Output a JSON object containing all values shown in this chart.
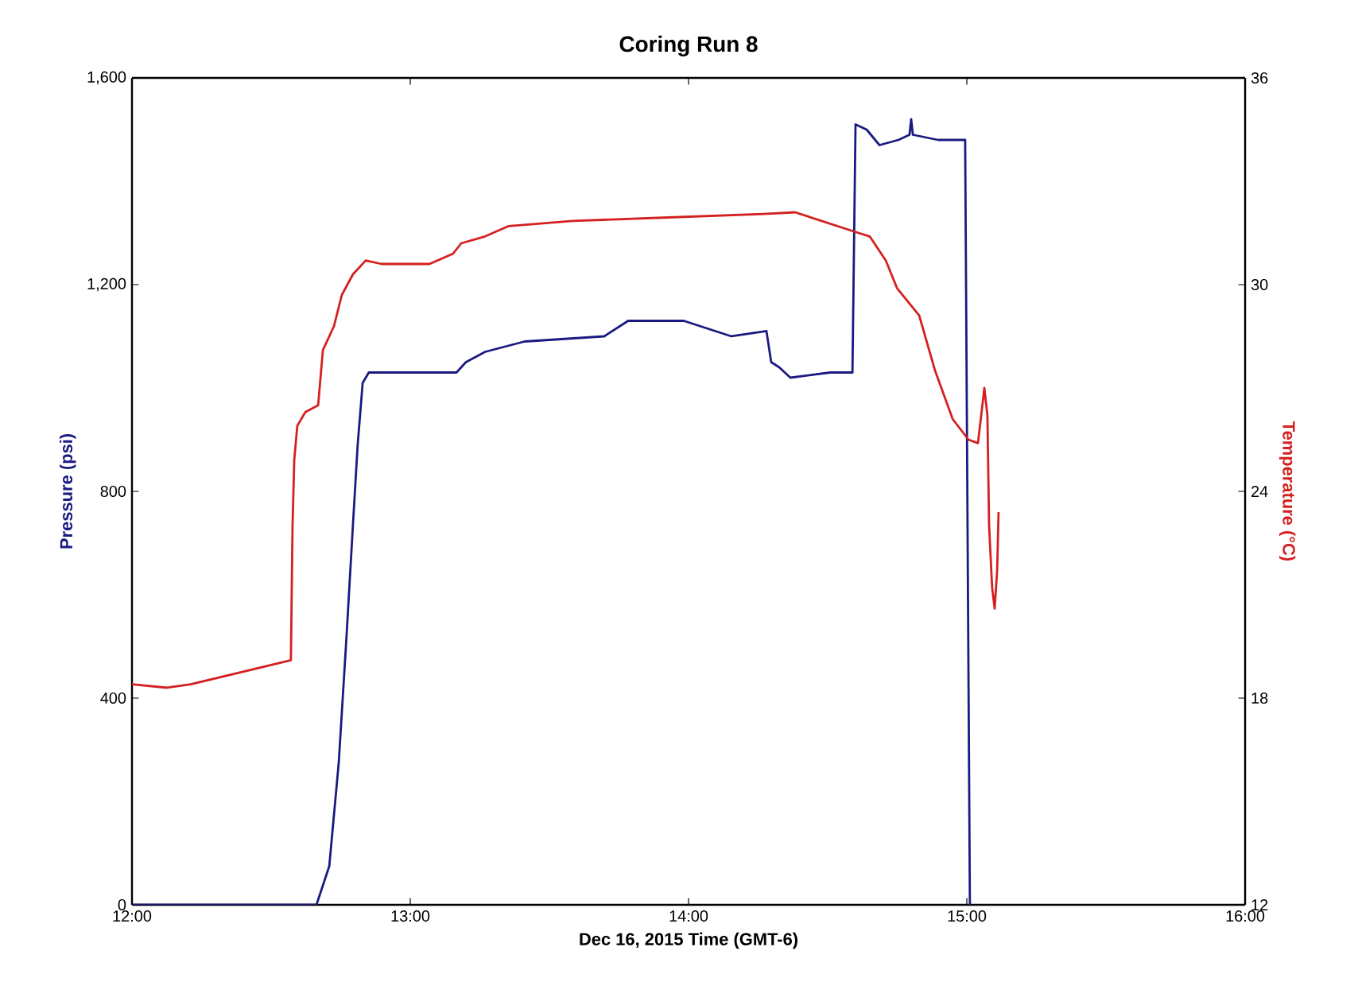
{
  "chart_data": {
    "type": "line",
    "title": "Coring Run 8",
    "xlabel": "Dec 16, 2015 Time (GMT-6)",
    "ylabel": "Pressure (psi)",
    "y2label": "Temperature (°C)",
    "xlim": [
      12,
      16
    ],
    "xticks": [
      {
        "value": 12,
        "label": "12:00"
      },
      {
        "value": 13,
        "label": "13:00"
      },
      {
        "value": 14,
        "label": "14:00"
      },
      {
        "value": 15,
        "label": "15:00"
      },
      {
        "value": 16,
        "label": "16:00"
      }
    ],
    "ylim": [
      0,
      1600
    ],
    "yticks": [
      {
        "value": 0,
        "label": "0"
      },
      {
        "value": 400,
        "label": "400"
      },
      {
        "value": 800,
        "label": "800"
      },
      {
        "value": 1200,
        "label": "1,200"
      },
      {
        "value": 1600,
        "label": "1,600"
      }
    ],
    "y2lim": [
      12,
      36
    ],
    "y2ticks": [
      12,
      18,
      24,
      30,
      36
    ],
    "series": [
      {
        "color": "#1a1a80",
        "axis": "y",
        "x": [
          12.0,
          12.663,
          12.709,
          12.743,
          12.771,
          12.794,
          12.811,
          12.829,
          12.851,
          13.166,
          13.2,
          13.269,
          13.411,
          13.697,
          13.783,
          13.983,
          14.04,
          14.154,
          14.28,
          14.297,
          14.326,
          14.366,
          14.509,
          14.589,
          14.6,
          14.64,
          14.686,
          14.754,
          14.794,
          14.8,
          14.806,
          14.897,
          14.994,
          15.011
        ],
        "values": [
          0,
          0,
          75,
          275,
          520,
          735,
          890,
          1010,
          1030,
          1030,
          1050,
          1070,
          1090,
          1100,
          1130,
          1130,
          1120,
          1100,
          1110,
          1050,
          1040,
          1020,
          1030,
          1030,
          1510,
          1500,
          1470,
          1480,
          1490,
          1520,
          1490,
          1480,
          1480,
          0
        ]
      },
      {
        "color": "#d42020",
        "axis": "y2",
        "x": [
          12.0,
          12.126,
          12.211,
          12.571,
          12.577,
          12.583,
          12.594,
          12.623,
          12.669,
          12.686,
          12.726,
          12.754,
          12.794,
          12.84,
          12.897,
          13.069,
          13.154,
          13.183,
          13.269,
          13.354,
          13.583,
          13.926,
          14.269,
          14.383,
          14.497,
          14.611,
          14.651,
          14.709,
          14.749,
          14.829,
          14.886,
          14.949,
          15.006,
          15.04,
          15.063,
          15.074,
          15.08,
          15.091,
          15.1,
          15.109,
          15.114
        ],
        "values": [
          18.4,
          18.3,
          18.4,
          19.1,
          23.0,
          24.9,
          25.9,
          26.3,
          26.5,
          28.1,
          28.8,
          29.7,
          30.3,
          30.7,
          30.6,
          30.6,
          30.9,
          31.2,
          31.4,
          31.7,
          31.85,
          31.95,
          32.05,
          32.1,
          31.8,
          31.5,
          31.4,
          30.7,
          29.9,
          29.1,
          27.5,
          26.1,
          25.5,
          25.4,
          27.0,
          26.2,
          23.0,
          21.2,
          20.6,
          21.7,
          23.4
        ]
      }
    ]
  }
}
